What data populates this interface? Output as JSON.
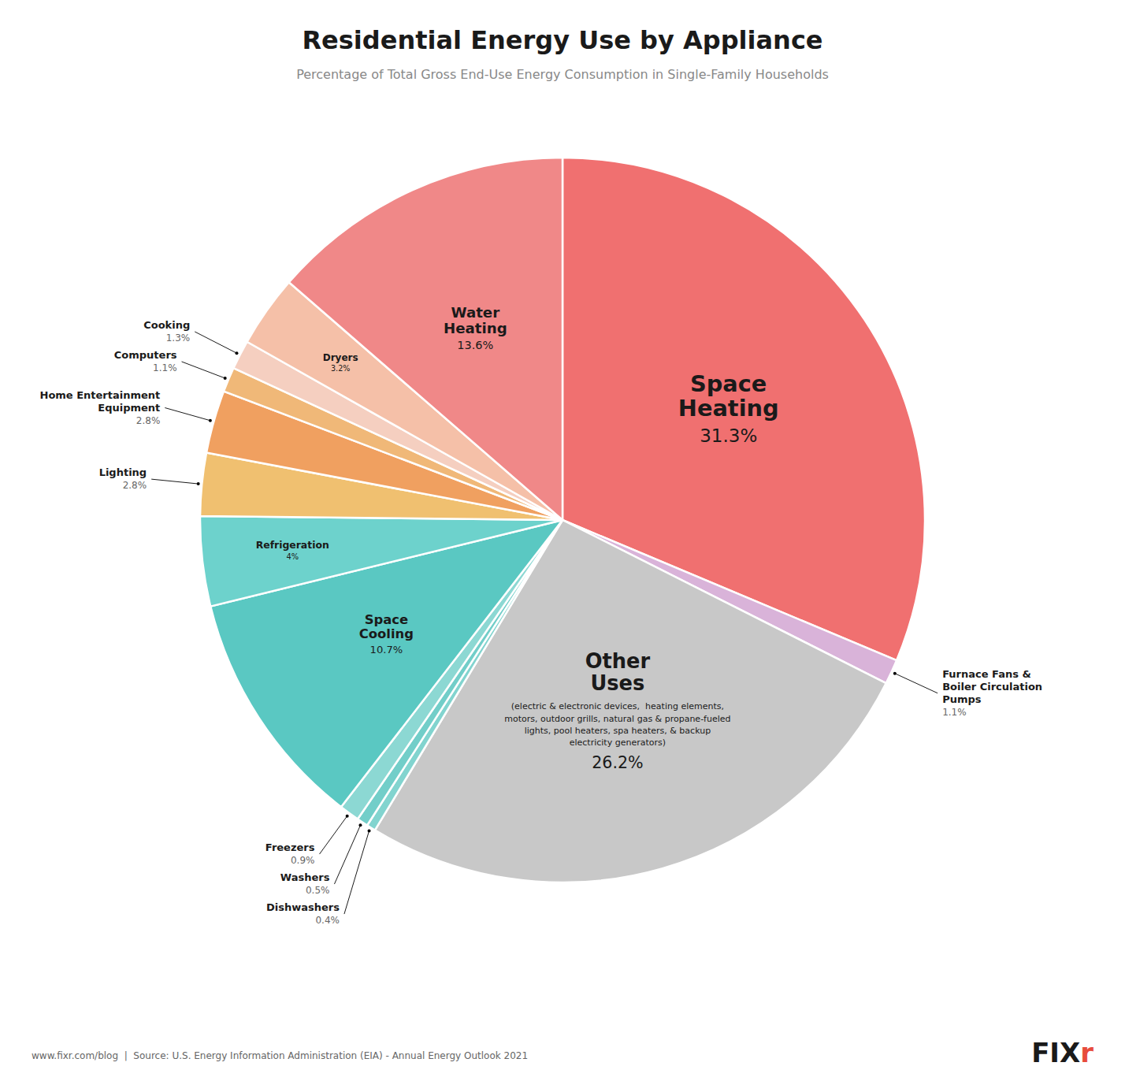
{
  "chart_data": {
    "type": "pie",
    "title": "Residential Energy Use by Appliance",
    "subtitle": "Percentage of Total Gross End-Use Energy Consumption in Single-Family Households",
    "footer": "www.fixr.com/blog  |  Source: U.S. Energy Information Administration (EIA) - Annual Energy Outlook 2021",
    "logo": [
      {
        "text": "FIX",
        "color": "#1a1a1a"
      },
      {
        "text": "r",
        "color": "#e74c3c"
      }
    ],
    "categories": [
      "Space Heating",
      "Furnace Fans & Boiler Circulation Pumps",
      "Other Uses",
      "Dishwashers",
      "Washers",
      "Freezers",
      "Space Cooling",
      "Refrigeration",
      "Lighting",
      "Home Entertainment Equipment",
      "Computers",
      "Cooking",
      "Dryers",
      "Water Heating"
    ],
    "values": [
      31.3,
      1.1,
      26.2,
      0.4,
      0.5,
      0.9,
      10.7,
      4.0,
      2.8,
      2.8,
      1.1,
      1.3,
      3.2,
      13.6
    ],
    "value_labels": [
      "31.3%",
      "1.1%",
      "26.2%",
      "0.4%",
      "0.5%",
      "0.9%",
      "10.7%",
      "4%",
      "2.8%",
      "2.8%",
      "1.1%",
      "1.3%",
      "3.2%",
      "13.6%"
    ],
    "colors": [
      "#f07070",
      "#d9b3d9",
      "#c8c8c8",
      "#82d4cf",
      "#72cec9",
      "#8cd8d3",
      "#5ac8c2",
      "#6dd2cc",
      "#f0c070",
      "#f0a060",
      "#f0b878",
      "#f5cfc0",
      "#f5c0a8",
      "#f08888"
    ],
    "data_labels": true,
    "annotations": [
      {
        "text": "(electric & electronic devices,  heating elements,\nmotors, outdoor grills, natural gas & propane-fueled\nlights, pool heaters, spa heaters, & backup\nelectricity generators)",
        "category": "Other Uses"
      }
    ]
  }
}
